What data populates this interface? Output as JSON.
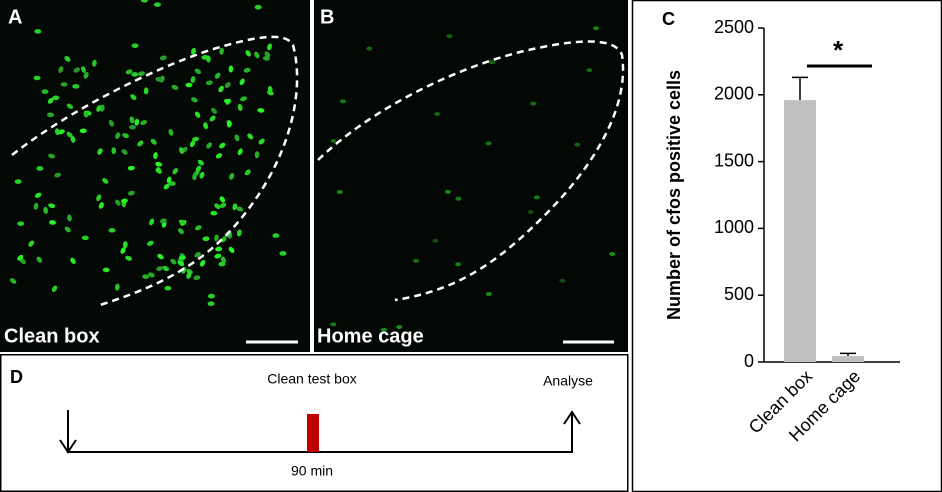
{
  "panels": {
    "a": {
      "label": "A",
      "caption": "Clean box"
    },
    "b": {
      "label": "B",
      "caption": "Home cage"
    },
    "d": {
      "label": "D",
      "event": "Clean test box",
      "end": "Analyse",
      "duration": "90 min"
    }
  },
  "chart_data": {
    "type": "bar",
    "panel_label": "C",
    "y_label": "Number of cfos positive cells",
    "categories": [
      "Clean box",
      "Home cage"
    ],
    "values": [
      1960,
      45
    ],
    "errors": [
      170,
      20
    ],
    "color": "#c0c0c0",
    "ylim": [
      0,
      2500
    ],
    "yticks": [
      0,
      500,
      1000,
      1500,
      2000,
      2500
    ],
    "annotation": "*"
  }
}
